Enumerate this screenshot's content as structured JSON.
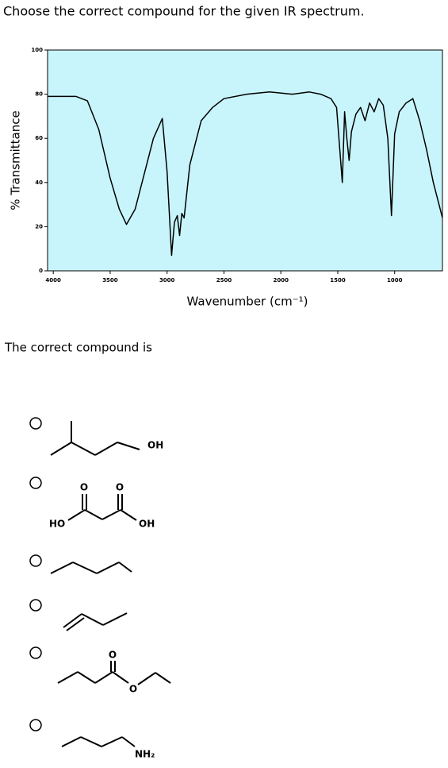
{
  "question": "Choose the correct compound for the given IR spectrum.",
  "chart_data": {
    "type": "line",
    "y_label": "% Transmittance",
    "x_label": "Wavenumber (cm⁻¹)",
    "x": [
      4050,
      3900,
      3800,
      3700,
      3600,
      3500,
      3420,
      3357,
      3280,
      3200,
      3120,
      3042,
      3000,
      2960,
      2935,
      2910,
      2890,
      2870,
      2850,
      2800,
      2700,
      2600,
      2500,
      2300,
      2100,
      1900,
      1750,
      1650,
      1560,
      1510,
      1460,
      1440,
      1420,
      1400,
      1380,
      1340,
      1300,
      1260,
      1220,
      1180,
      1140,
      1100,
      1060,
      1028,
      1000,
      960,
      900,
      840,
      780,
      720,
      660,
      580
    ],
    "values": [
      79,
      79,
      79,
      77,
      64,
      42,
      28,
      21,
      28,
      44,
      60,
      69,
      45,
      7,
      22,
      25,
      16,
      26,
      24,
      48,
      68,
      74,
      78,
      80,
      81,
      80,
      81,
      80,
      78,
      74,
      40,
      72,
      60,
      50,
      63,
      71,
      74,
      68,
      76,
      72,
      78,
      75,
      60,
      25,
      62,
      72,
      76,
      78,
      68,
      55,
      40,
      24
    ],
    "color": "#000000",
    "background": "#c8f5fb",
    "xlim": [
      4050,
      580
    ],
    "ylim": [
      0,
      100
    ],
    "xticks": [
      4000,
      3500,
      3000,
      2500,
      2000,
      1500,
      1000
    ],
    "yticks": [
      0,
      20,
      40,
      60,
      80,
      100
    ]
  },
  "prompt": "The correct compound is",
  "options": [
    {
      "atoms": [
        "OH"
      ]
    },
    {
      "atoms": [
        "O",
        "O",
        "HO",
        "OH"
      ]
    },
    {},
    {},
    {
      "atoms": [
        "O",
        "O"
      ]
    },
    {
      "atoms": [
        "NH₂"
      ]
    }
  ]
}
